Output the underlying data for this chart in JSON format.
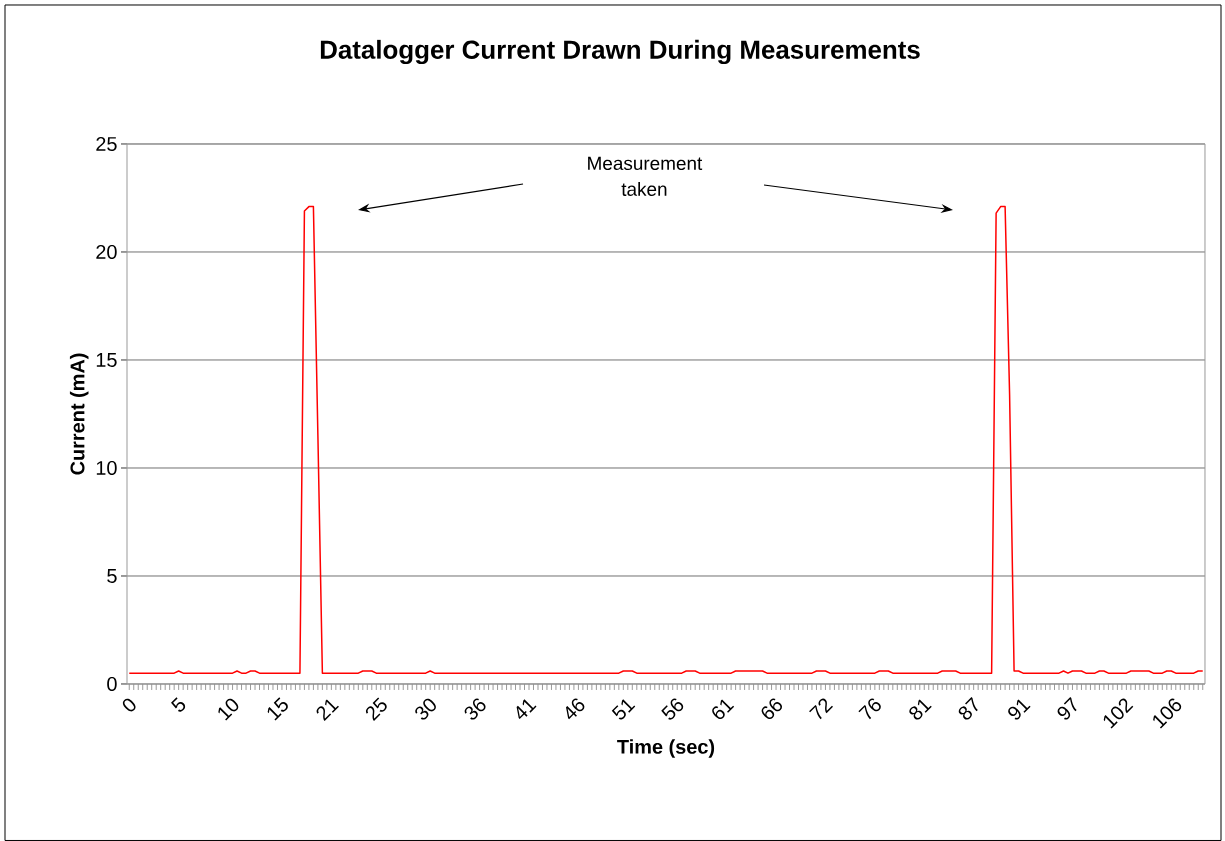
{
  "chart_data": {
    "type": "line",
    "title": "Datalogger Current Drawn During Measurements",
    "xlabel": "Time (sec)",
    "ylabel": "Current (mA)",
    "annotations": [
      "Measurement taken"
    ],
    "categories": [
      "0",
      null,
      null,
      null,
      null,
      null,
      null,
      null,
      null,
      null,
      null,
      "5",
      null,
      null,
      null,
      null,
      null,
      null,
      null,
      null,
      null,
      null,
      "10",
      null,
      null,
      null,
      null,
      null,
      null,
      null,
      null,
      null,
      null,
      "15",
      null,
      null,
      null,
      null,
      null,
      null,
      null,
      null,
      null,
      null,
      "21",
      null,
      null,
      null,
      null,
      null,
      null,
      null,
      null,
      null,
      null,
      "25",
      null,
      null,
      null,
      null,
      null,
      null,
      null,
      null,
      null,
      null,
      "30",
      null,
      null,
      null,
      null,
      null,
      null,
      null,
      null,
      null,
      null,
      "36",
      null,
      null,
      null,
      null,
      null,
      null,
      null,
      null,
      null,
      null,
      "41",
      null,
      null,
      null,
      null,
      null,
      null,
      null,
      null,
      null,
      null,
      "46",
      null,
      null,
      null,
      null,
      null,
      null,
      null,
      null,
      null,
      null,
      "51",
      null,
      null,
      null,
      null,
      null,
      null,
      null,
      null,
      null,
      null,
      "56",
      null,
      null,
      null,
      null,
      null,
      null,
      null,
      null,
      null,
      null,
      "61",
      null,
      null,
      null,
      null,
      null,
      null,
      null,
      null,
      null,
      null,
      "66",
      null,
      null,
      null,
      null,
      null,
      null,
      null,
      null,
      null,
      null,
      "72",
      null,
      null,
      null,
      null,
      null,
      null,
      null,
      null,
      null,
      null,
      "76",
      null,
      null,
      null,
      null,
      null,
      null,
      null,
      null,
      null,
      null,
      "81",
      null,
      null,
      null,
      null,
      null,
      null,
      null,
      null,
      null,
      null,
      "87",
      null,
      null,
      null,
      null,
      null,
      null,
      null,
      null,
      null,
      null,
      "91",
      null,
      null,
      null,
      null,
      null,
      null,
      null,
      null,
      null,
      null,
      "97",
      null,
      null,
      null,
      null,
      null,
      null,
      null,
      null,
      null,
      null,
      "102",
      null,
      null,
      null,
      null,
      null,
      null,
      null,
      null,
      null,
      null,
      "106",
      null,
      null,
      null,
      null,
      null,
      null,
      null,
      null
    ],
    "series": [
      {
        "color": "#ff0000",
        "values": [
          0.5,
          0.5,
          0.5,
          0.5,
          0.5,
          0.5,
          0.5,
          0.5,
          0.5,
          0.5,
          0.5,
          0.6,
          0.5,
          0.5,
          0.5,
          0.5,
          0.5,
          0.5,
          0.5,
          0.5,
          0.5,
          0.5,
          0.5,
          0.5,
          0.6,
          0.5,
          0.5,
          0.6,
          0.6,
          0.5,
          0.5,
          0.5,
          0.5,
          0.5,
          0.5,
          0.5,
          0.5,
          0.5,
          0.5,
          21.9,
          22.1,
          22.1,
          11.5,
          0.5,
          0.5,
          0.5,
          0.5,
          0.5,
          0.5,
          0.5,
          0.5,
          0.5,
          0.6,
          0.6,
          0.6,
          0.5,
          0.5,
          0.5,
          0.5,
          0.5,
          0.5,
          0.5,
          0.5,
          0.5,
          0.5,
          0.5,
          0.5,
          0.6,
          0.5,
          0.5,
          0.5,
          0.5,
          0.5,
          0.5,
          0.5,
          0.5,
          0.5,
          0.5,
          0.5,
          0.5,
          0.5,
          0.5,
          0.5,
          0.5,
          0.5,
          0.5,
          0.5,
          0.5,
          0.5,
          0.5,
          0.5,
          0.5,
          0.5,
          0.5,
          0.5,
          0.5,
          0.5,
          0.5,
          0.5,
          0.5,
          0.5,
          0.5,
          0.5,
          0.5,
          0.5,
          0.5,
          0.5,
          0.5,
          0.5,
          0.5,
          0.6,
          0.6,
          0.6,
          0.5,
          0.5,
          0.5,
          0.5,
          0.5,
          0.5,
          0.5,
          0.5,
          0.5,
          0.5,
          0.5,
          0.6,
          0.6,
          0.6,
          0.5,
          0.5,
          0.5,
          0.5,
          0.5,
          0.5,
          0.5,
          0.5,
          0.6,
          0.6,
          0.6,
          0.6,
          0.6,
          0.6,
          0.6,
          0.5,
          0.5,
          0.5,
          0.5,
          0.5,
          0.5,
          0.5,
          0.5,
          0.5,
          0.5,
          0.5,
          0.6,
          0.6,
          0.6,
          0.5,
          0.5,
          0.5,
          0.5,
          0.5,
          0.5,
          0.5,
          0.5,
          0.5,
          0.5,
          0.5,
          0.6,
          0.6,
          0.6,
          0.5,
          0.5,
          0.5,
          0.5,
          0.5,
          0.5,
          0.5,
          0.5,
          0.5,
          0.5,
          0.5,
          0.6,
          0.6,
          0.6,
          0.6,
          0.5,
          0.5,
          0.5,
          0.5,
          0.5,
          0.5,
          0.5,
          0.5,
          21.8,
          22.1,
          22.1,
          13.4,
          0.6,
          0.6,
          0.5,
          0.5,
          0.5,
          0.5,
          0.5,
          0.5,
          0.5,
          0.5,
          0.5,
          0.6,
          0.5,
          0.6,
          0.6,
          0.6,
          0.5,
          0.5,
          0.5,
          0.6,
          0.6,
          0.5,
          0.5,
          0.5,
          0.5,
          0.5,
          0.6,
          0.6,
          0.6,
          0.6,
          0.6,
          0.5,
          0.5,
          0.5,
          0.6,
          0.6,
          0.5,
          0.5,
          0.5,
          0.5,
          0.5,
          0.6,
          0.6
        ]
      }
    ],
    "ylim": [
      0,
      25
    ],
    "yticks": [
      0,
      5,
      10,
      15,
      20,
      25
    ],
    "grid": "y"
  }
}
